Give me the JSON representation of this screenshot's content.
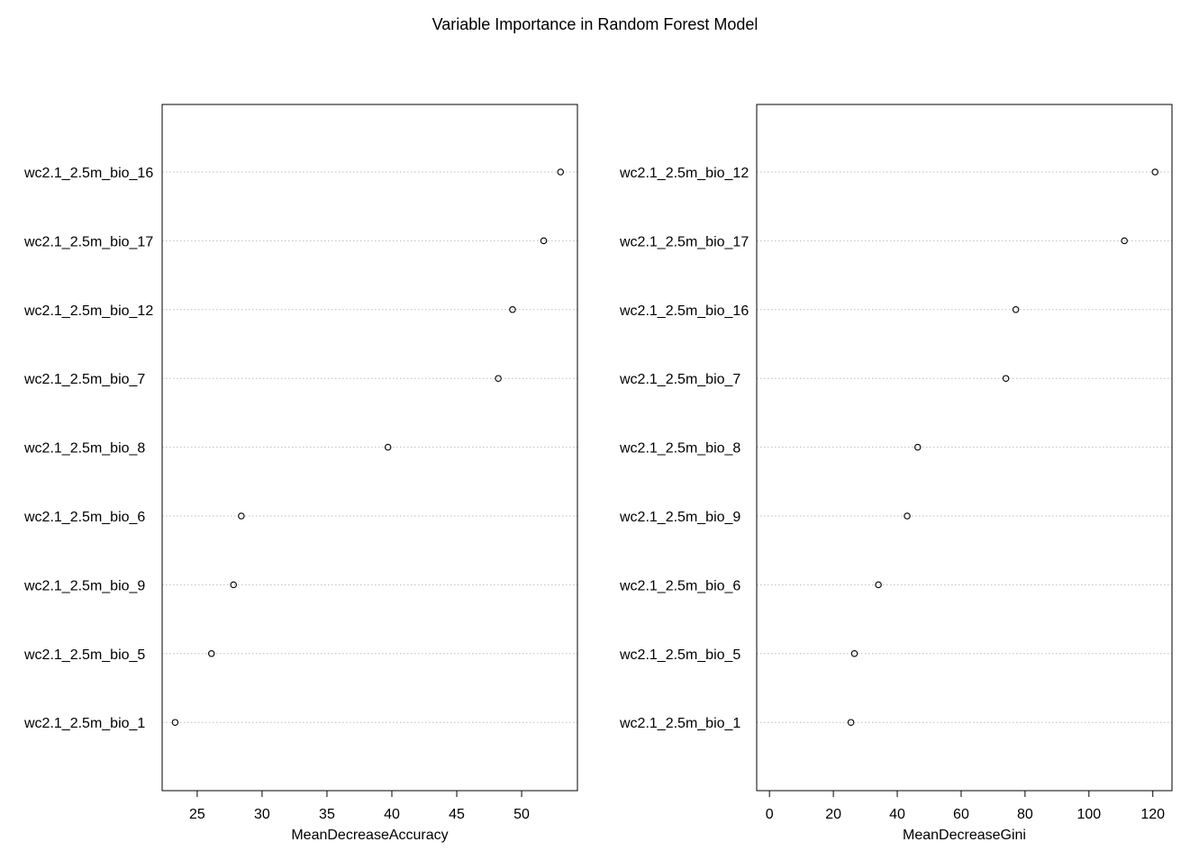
{
  "chart_data": [
    {
      "type": "scatter",
      "title": "Variable Importance in Random Forest Model",
      "xlabel": "MeanDecreaseAccuracy",
      "ylabel": "",
      "grid": true,
      "xlim": [
        22.3,
        54.3
      ],
      "xticks": [
        25,
        30,
        35,
        40,
        45,
        50
      ],
      "categories": [
        "wc2.1_2.5m_bio_16",
        "wc2.1_2.5m_bio_17",
        "wc2.1_2.5m_bio_12",
        "wc2.1_2.5m_bio_7",
        "wc2.1_2.5m_bio_8",
        "wc2.1_2.5m_bio_6",
        "wc2.1_2.5m_bio_9",
        "wc2.1_2.5m_bio_5",
        "wc2.1_2.5m_bio_1"
      ],
      "values": [
        53.0,
        51.7,
        49.3,
        48.2,
        39.7,
        28.4,
        27.8,
        26.1,
        23.3
      ]
    },
    {
      "type": "scatter",
      "title": "",
      "xlabel": "MeanDecreaseGini",
      "ylabel": "",
      "grid": true,
      "xlim": [
        -4,
        126
      ],
      "xticks": [
        0,
        20,
        40,
        60,
        80,
        100,
        120
      ],
      "categories": [
        "wc2.1_2.5m_bio_12",
        "wc2.1_2.5m_bio_17",
        "wc2.1_2.5m_bio_16",
        "wc2.1_2.5m_bio_7",
        "wc2.1_2.5m_bio_8",
        "wc2.1_2.5m_bio_9",
        "wc2.1_2.5m_bio_6",
        "wc2.1_2.5m_bio_5",
        "wc2.1_2.5m_bio_1"
      ],
      "values": [
        120.7,
        111.1,
        77.1,
        74.0,
        46.4,
        43.1,
        34.1,
        26.6,
        25.5
      ]
    }
  ]
}
